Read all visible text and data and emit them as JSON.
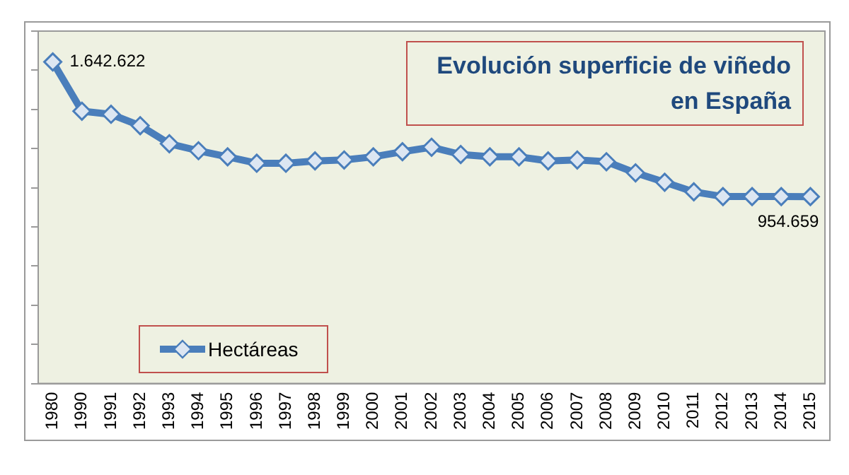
{
  "chart_data": {
    "type": "line",
    "title": "Evolución superficie de viñedo en España",
    "tick_labels": "x",
    "categories": [
      "1980",
      "1990",
      "1991",
      "1992",
      "1993",
      "1994",
      "1995",
      "1996",
      "1997",
      "1998",
      "1999",
      "2000",
      "2001",
      "2002",
      "2003",
      "2004",
      "2005",
      "2006",
      "2007",
      "2008",
      "2009",
      "2010",
      "2011",
      "2012",
      "2013",
      "2014",
      "2015"
    ],
    "series": [
      {
        "name": "Hectáreas",
        "color": "#4a7ebb",
        "values": [
          1642622,
          1391000,
          1375000,
          1317000,
          1225000,
          1189000,
          1158000,
          1125000,
          1125000,
          1137000,
          1142000,
          1158000,
          1184000,
          1207000,
          1170000,
          1158000,
          1158000,
          1137000,
          1142000,
          1133000,
          1076000,
          1028000,
          979000,
          955000,
          955000,
          955000,
          954659
        ],
        "value_labels": [
          "1.642.622",
          null,
          null,
          null,
          null,
          null,
          null,
          null,
          null,
          null,
          null,
          null,
          null,
          null,
          null,
          null,
          null,
          null,
          null,
          null,
          null,
          null,
          null,
          null,
          null,
          null,
          "954.659"
        ]
      }
    ],
    "marker": "diamond",
    "line_style": "solid",
    "grid": false,
    "legend": "bottom left"
  }
}
